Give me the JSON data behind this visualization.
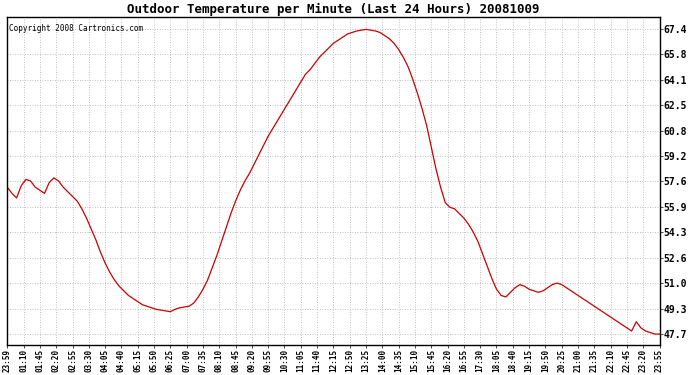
{
  "title": "Outdoor Temperature per Minute (Last 24 Hours) 20081009",
  "copyright": "Copyright 2008 Cartronics.com",
  "line_color": "#cc0000",
  "bg_color": "#ffffff",
  "grid_color": "#aaaaaa",
  "yticks": [
    47.7,
    49.3,
    51.0,
    52.6,
    54.3,
    55.9,
    57.6,
    59.2,
    60.8,
    62.5,
    64.1,
    65.8,
    67.4
  ],
  "ylim": [
    47.0,
    68.2
  ],
  "xtick_labels": [
    "23:59",
    "01:10",
    "01:45",
    "02:20",
    "02:55",
    "03:30",
    "04:05",
    "04:40",
    "05:15",
    "05:50",
    "06:25",
    "07:00",
    "07:35",
    "08:10",
    "08:45",
    "09:20",
    "09:55",
    "10:30",
    "11:05",
    "11:40",
    "12:15",
    "12:50",
    "13:25",
    "14:00",
    "14:35",
    "15:10",
    "15:45",
    "16:20",
    "16:55",
    "17:30",
    "18:05",
    "18:40",
    "19:15",
    "19:50",
    "20:25",
    "21:00",
    "21:35",
    "22:10",
    "22:45",
    "23:20",
    "23:55"
  ],
  "temperature_data": [
    57.2,
    56.8,
    56.5,
    57.3,
    57.7,
    57.6,
    57.2,
    57.0,
    56.8,
    57.5,
    57.8,
    57.6,
    57.2,
    56.9,
    56.6,
    56.3,
    55.8,
    55.2,
    54.5,
    53.8,
    53.0,
    52.3,
    51.7,
    51.2,
    50.8,
    50.5,
    50.2,
    50.0,
    49.8,
    49.6,
    49.5,
    49.4,
    49.3,
    49.25,
    49.2,
    49.15,
    49.3,
    49.4,
    49.45,
    49.5,
    49.7,
    50.1,
    50.6,
    51.2,
    52.0,
    52.8,
    53.7,
    54.6,
    55.5,
    56.3,
    57.0,
    57.6,
    58.1,
    58.7,
    59.3,
    59.9,
    60.5,
    61.0,
    61.5,
    62.0,
    62.5,
    63.0,
    63.5,
    64.0,
    64.5,
    64.8,
    65.2,
    65.6,
    65.9,
    66.2,
    66.5,
    66.7,
    66.9,
    67.1,
    67.2,
    67.3,
    67.35,
    67.4,
    67.35,
    67.3,
    67.2,
    67.0,
    66.8,
    66.5,
    66.1,
    65.6,
    65.0,
    64.2,
    63.3,
    62.3,
    61.2,
    59.8,
    58.4,
    57.2,
    56.2,
    55.9,
    55.8,
    55.5,
    55.2,
    54.8,
    54.3,
    53.7,
    52.9,
    52.1,
    51.3,
    50.6,
    50.2,
    50.1,
    50.4,
    50.7,
    50.9,
    50.8,
    50.6,
    50.5,
    50.4,
    50.5,
    50.7,
    50.9,
    51.0,
    50.9,
    50.7,
    50.5,
    50.3,
    50.1,
    49.9,
    49.7,
    49.5,
    49.3,
    49.1,
    48.9,
    48.7,
    48.5,
    48.3,
    48.1,
    47.9,
    48.5,
    48.1,
    47.9,
    47.8,
    47.7,
    47.7
  ],
  "n_points": 141
}
